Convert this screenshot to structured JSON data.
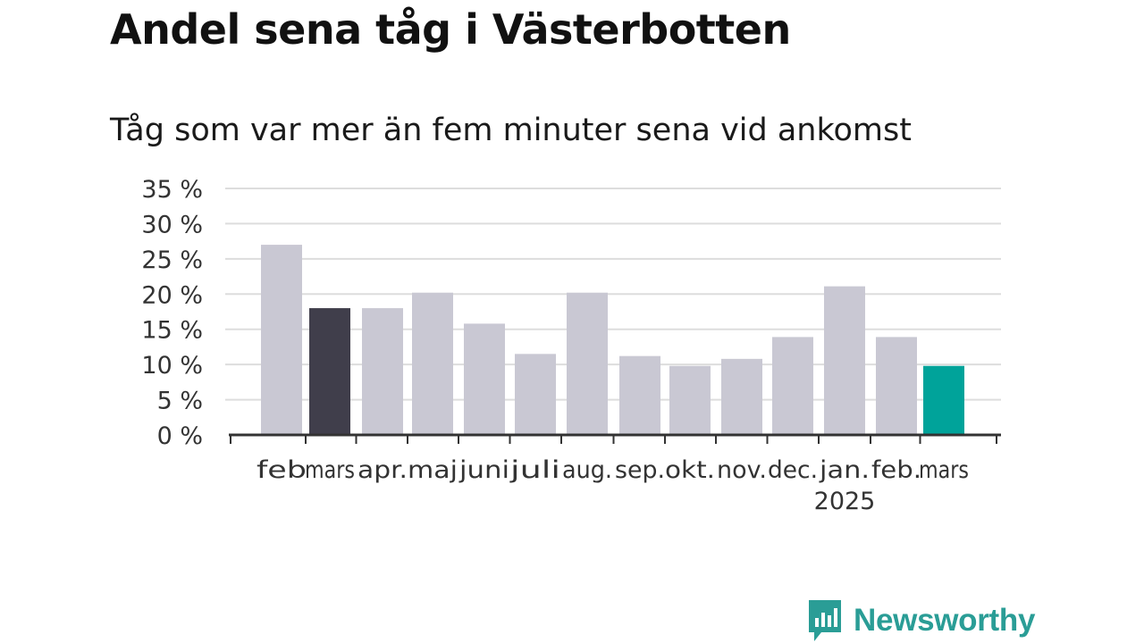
{
  "header": {
    "title": "Andel sena tåg i Västerbotten",
    "subtitle": "Tåg som var mer än fem minuter sena vid ankomst"
  },
  "brand": {
    "name": "Newsworthy",
    "icon": "newsworthy-logo-icon",
    "color": "#2a9d96"
  },
  "colors": {
    "default_bar": "#c9c8d3",
    "highlight_previous_year": "#403e4b",
    "highlight_current": "#00a39a",
    "grid": "#dddddd",
    "axis": "#333333"
  },
  "chart_data": {
    "type": "bar",
    "title": "Andel sena tåg i Västerbotten",
    "subtitle": "Tåg som var mer än fem minuter sena vid ankomst",
    "categories": [
      "feb",
      "mars",
      "apr.",
      "maj",
      "juni",
      "juli",
      "aug.",
      "sep.",
      "okt.",
      "nov.",
      "dec.",
      "jan.",
      "feb.",
      "mars"
    ],
    "year_labels": [
      "",
      "",
      "",
      "",
      "",
      "",
      "",
      "",
      "",
      "",
      "",
      "2025",
      "",
      ""
    ],
    "values": [
      27,
      18,
      18,
      20.2,
      15.8,
      11.5,
      20.2,
      11.2,
      9.8,
      10.8,
      13.9,
      21.1,
      13.9,
      9.8
    ],
    "highlight": [
      "default",
      "previous",
      "default",
      "default",
      "default",
      "default",
      "default",
      "default",
      "default",
      "default",
      "default",
      "default",
      "default",
      "current"
    ],
    "ylim": [
      0,
      35
    ],
    "yticks": [
      0,
      5,
      10,
      15,
      20,
      25,
      30,
      35
    ],
    "ytick_labels": [
      "0 %",
      "5 %",
      "10 %",
      "15 %",
      "20 %",
      "25 %",
      "30 %",
      "35 %"
    ],
    "xlabel": "",
    "ylabel": "",
    "grid": true,
    "legend": "none"
  }
}
